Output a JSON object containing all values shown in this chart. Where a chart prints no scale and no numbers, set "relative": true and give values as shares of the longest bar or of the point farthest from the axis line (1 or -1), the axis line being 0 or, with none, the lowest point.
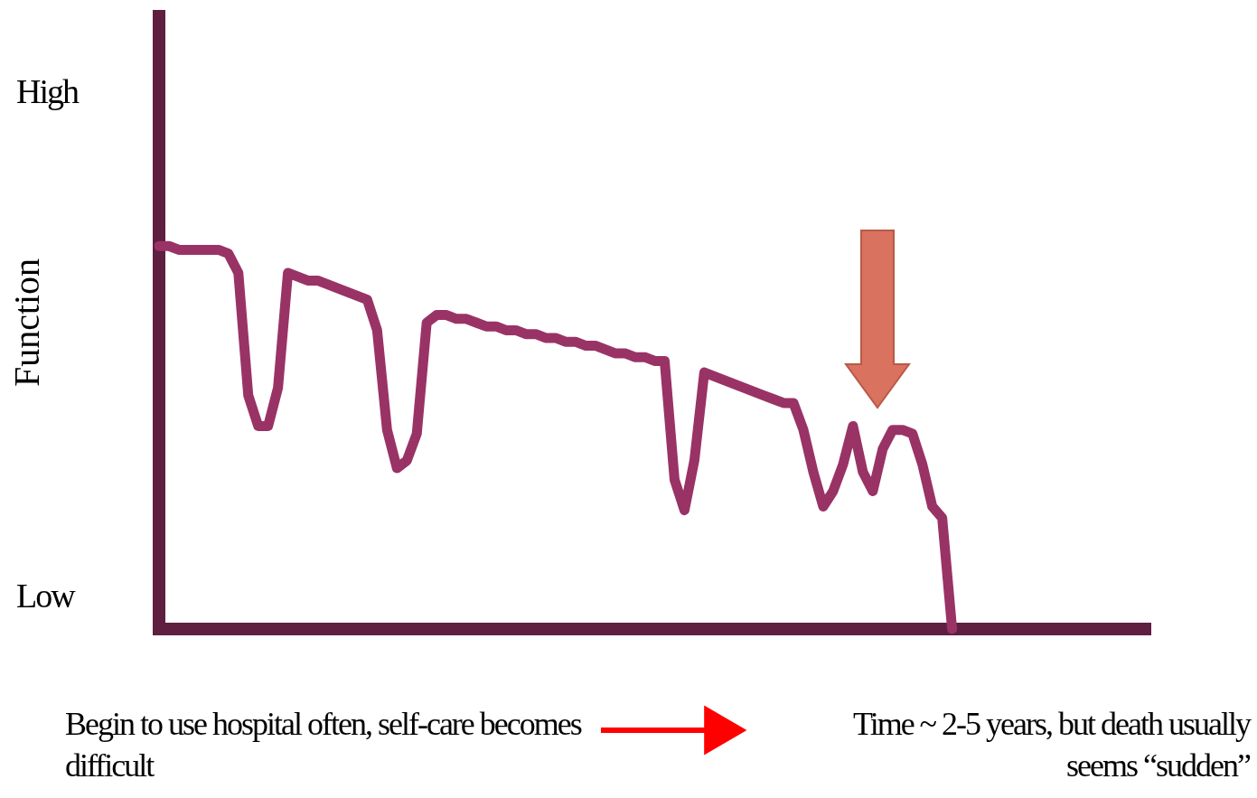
{
  "chart_data": {
    "type": "line",
    "ylabel": "Function",
    "relative": true,
    "grid": false,
    "legend": false,
    "marker": "none",
    "line_style": "solid",
    "categories": [
      null,
      null,
      null,
      null,
      null,
      null,
      null,
      null,
      null,
      null,
      null,
      null,
      null,
      null,
      null,
      null,
      null,
      null,
      null,
      null,
      null,
      null,
      null,
      null,
      null,
      null,
      null,
      null,
      null,
      null,
      null,
      null,
      null,
      null,
      null,
      null,
      null,
      null,
      null,
      null,
      null,
      null,
      null,
      null,
      null,
      null,
      null,
      null,
      null,
      null,
      null,
      null,
      null,
      null,
      null,
      null,
      null,
      null,
      null,
      null,
      null,
      null,
      null,
      null,
      null,
      null,
      null,
      null,
      null,
      null,
      null,
      null,
      null,
      null,
      null,
      null,
      null,
      null,
      null,
      null,
      null,
      null,
      null,
      null,
      null,
      null,
      null,
      null,
      null,
      null,
      null,
      null,
      null,
      null,
      null,
      null,
      null,
      null,
      null,
      null,
      null
    ],
    "series": [
      {
        "color": "#993366",
        "values": [
          1,
          1,
          0.99,
          0.99,
          0.99,
          0.99,
          0.99,
          0.98,
          0.93,
          0.61,
          0.53,
          0.53,
          0.63,
          0.93,
          0.92,
          0.91,
          0.91,
          0.9,
          0.89,
          0.88,
          0.87,
          0.86,
          0.78,
          0.52,
          0.42,
          0.44,
          0.51,
          0.8,
          0.82,
          0.82,
          0.81,
          0.81,
          0.8,
          0.79,
          0.79,
          0.78,
          0.78,
          0.77,
          0.77,
          0.76,
          0.76,
          0.75,
          0.75,
          0.74,
          0.74,
          0.73,
          0.72,
          0.72,
          0.71,
          0.71,
          0.7,
          0.7,
          0.39,
          0.31,
          0.44,
          0.67,
          0.66,
          0.65,
          0.64,
          0.63,
          0.62,
          0.61,
          0.6,
          0.59,
          0.59,
          0.52,
          0.41,
          0.32,
          0.36,
          0.43,
          0.53,
          0.41,
          0.36,
          0.47,
          0.52,
          0.52,
          0.51,
          0.43,
          0.32,
          0.29,
          0,
          null,
          null,
          null,
          null,
          null,
          null,
          null,
          null,
          null,
          null,
          null,
          null,
          null,
          null,
          null,
          null,
          null,
          null,
          null,
          null
        ]
      }
    ],
    "annotations": [
      "High",
      "Low",
      "Begin to use hospital often, self-care becomes difficult",
      "Time ~ 2-5 years, but death usually seems “sudden”"
    ]
  }
}
